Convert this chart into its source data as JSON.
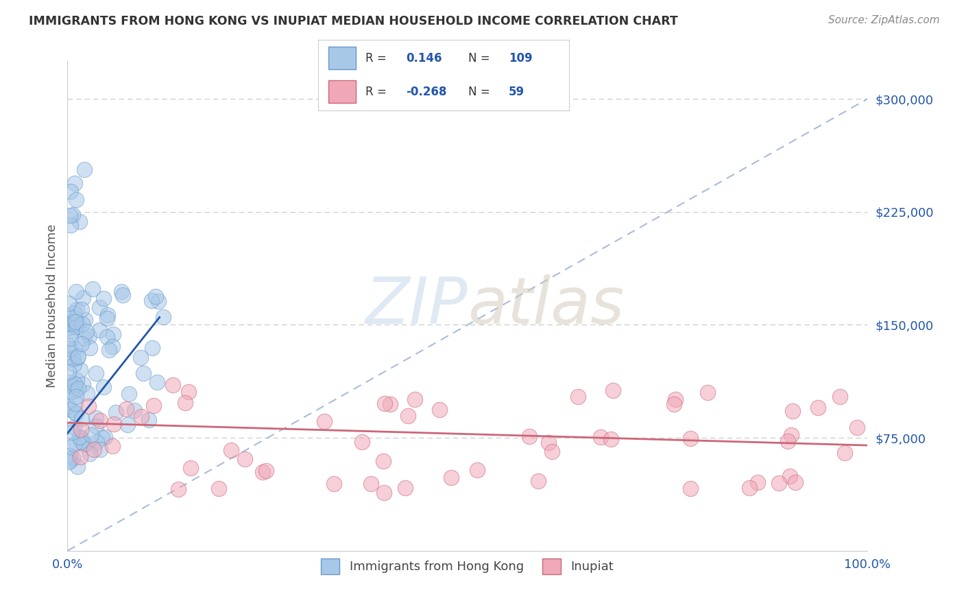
{
  "title": "IMMIGRANTS FROM HONG KONG VS INUPIAT MEDIAN HOUSEHOLD INCOME CORRELATION CHART",
  "source": "Source: ZipAtlas.com",
  "ylabel": "Median Household Income",
  "xlim": [
    0,
    1.0
  ],
  "ylim": [
    0,
    325000
  ],
  "yticks": [
    0,
    75000,
    150000,
    225000,
    300000
  ],
  "ytick_labels": [
    "",
    "$75,000",
    "$150,000",
    "$225,000",
    "$300,000"
  ],
  "xtick_labels": [
    "0.0%",
    "100.0%"
  ],
  "r_blue": "0.146",
  "n_blue": "109",
  "r_pink": "-0.268",
  "n_pink": "59",
  "blue_fill": "#a8c8e8",
  "blue_edge": "#6699cc",
  "pink_fill": "#f0a8b8",
  "pink_edge": "#cc6677",
  "trend_blue": "#2255aa",
  "trend_pink": "#cc6677",
  "ref_line_color": "#aabbdd",
  "legend_text_color": "#2255aa",
  "watermark_color": "#c8d8e8",
  "background": "#ffffff",
  "grid_color": "#cccccc",
  "spine_color": "#cccccc",
  "title_color": "#333333",
  "source_color": "#888888",
  "ylabel_color": "#555555",
  "ytick_color": "#2255aa",
  "xtick_color": "#2255aa"
}
